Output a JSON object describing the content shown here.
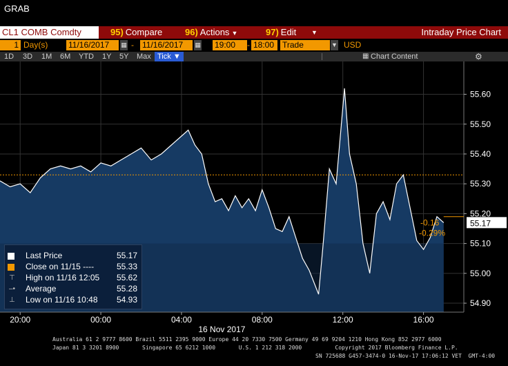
{
  "window": {
    "title": "GRAB"
  },
  "toolbar": {
    "security": "CL1 COMB Comdty",
    "compare": {
      "num": "95)",
      "label": "Compare"
    },
    "actions": {
      "num": "96)",
      "label": "Actions"
    },
    "edit": {
      "num": "97)",
      "label": "Edit"
    },
    "title": "Intraday Price Chart"
  },
  "settings": {
    "period_count": "1",
    "period_unit": "Day(s)",
    "start_date": "11/16/2017",
    "dash": "-",
    "end_date": "11/16/2017",
    "start_time": "19:00",
    "end_time": "18:00",
    "event": "Trade",
    "currency": "USD"
  },
  "ranges": {
    "items": [
      "1D",
      "3D",
      "1M",
      "6M",
      "YTD",
      "1Y",
      "5Y",
      "Max"
    ],
    "selected": "Tick",
    "chart_content": "Chart Content"
  },
  "legend": {
    "last_price": {
      "label": "Last Price",
      "value": "55.17"
    },
    "close": {
      "label": "Close on 11/15 ----",
      "value": "55.33"
    },
    "high": {
      "label": "High on 11/16 12:05",
      "value": "55.62"
    },
    "average": {
      "label": "Average",
      "value": "55.28"
    },
    "low": {
      "label": "Low on 11/16 10:48",
      "value": "54.93"
    }
  },
  "chart_data": {
    "type": "area",
    "instrument": "CL1 COMB Comdty",
    "date_label": "16 Nov 2017",
    "x_ticks": [
      "20:00",
      "00:00",
      "04:00",
      "08:00",
      "12:00",
      "16:00"
    ],
    "y_ticks": [
      "54.90",
      "55.00",
      "55.10",
      "55.20",
      "55.30",
      "55.40",
      "55.50",
      "55.60"
    ],
    "ylim": [
      54.87,
      55.71
    ],
    "previous_close": 55.33,
    "last_price": 55.17,
    "last_label": "55.17",
    "change": "-0.16",
    "change_pct": "-0.29%",
    "series": [
      {
        "x": [
          "19:00",
          "19:30",
          "20:00",
          "20:30",
          "21:00",
          "21:30",
          "22:00",
          "22:30",
          "23:00",
          "23:30",
          "00:00",
          "00:30",
          "01:00",
          "01:30",
          "02:00",
          "02:30",
          "03:00",
          "03:30",
          "04:00",
          "04:20",
          "04:40",
          "05:00",
          "05:20",
          "05:40",
          "06:00",
          "06:20",
          "06:40",
          "07:00",
          "07:20",
          "07:40",
          "08:00",
          "08:20",
          "08:40",
          "09:00",
          "09:20",
          "09:40",
          "10:00",
          "10:20",
          "10:48",
          "11:00",
          "11:20",
          "11:40",
          "12:05",
          "12:20",
          "12:40",
          "13:00",
          "13:20",
          "13:40",
          "14:00",
          "14:20",
          "14:40",
          "15:00",
          "15:20",
          "15:40",
          "16:00",
          "16:20",
          "16:40",
          "17:00"
        ],
        "values": [
          55.31,
          55.29,
          55.3,
          55.27,
          55.32,
          55.35,
          55.36,
          55.35,
          55.36,
          55.34,
          55.37,
          55.36,
          55.38,
          55.4,
          55.42,
          55.38,
          55.4,
          55.43,
          55.46,
          55.48,
          55.43,
          55.4,
          55.3,
          55.24,
          55.25,
          55.21,
          55.26,
          55.22,
          55.25,
          55.21,
          55.28,
          55.22,
          55.15,
          55.14,
          55.19,
          55.12,
          55.05,
          55.01,
          54.93,
          55.08,
          55.35,
          55.3,
          55.62,
          55.4,
          55.3,
          55.1,
          55.0,
          55.2,
          55.24,
          55.18,
          55.3,
          55.33,
          55.22,
          55.11,
          55.08,
          55.12,
          55.19,
          55.17
        ]
      }
    ]
  },
  "footer": {
    "line1": "Australia 61 2 9777 8600 Brazil 5511 2395 9000 Europe 44 20 7330 7500 Germany 49 69 9204 1210 Hong Kong 852 2977 6000",
    "line2": "Japan 81 3 3201 8900       Singapore 65 6212 1000       U.S. 1 212 318 2000          Copyright 2017 Bloomberg Finance L.P.",
    "line3": "SN 725688 G457-3474-0 16-Nov-17 17:06:12 VET  GMT-4:00"
  },
  "colors": {
    "toolbar_red": "#8e0a0a",
    "field_orange": "#f29800",
    "area_fill": "#163a63",
    "line": "#ffffff",
    "close_line": "#f29800",
    "selected_tab": "#2a5bd4"
  }
}
